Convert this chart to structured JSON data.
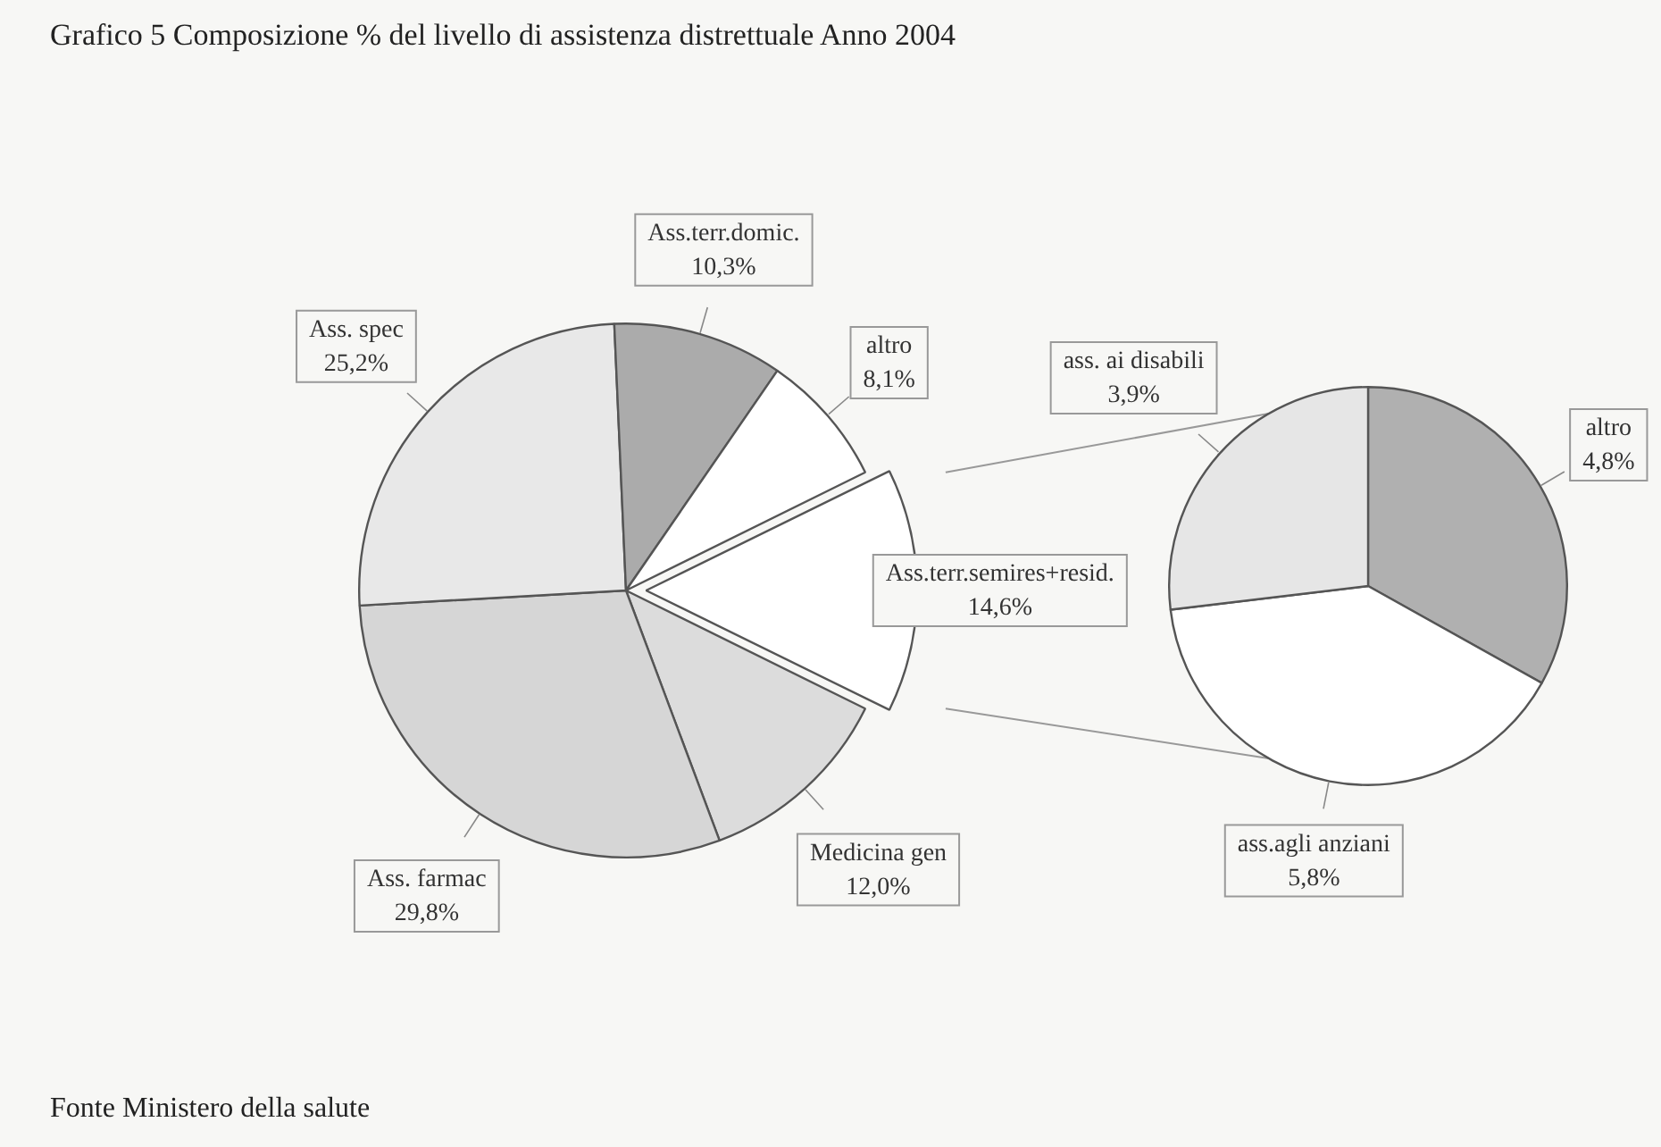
{
  "chart_data": [
    {
      "type": "pie",
      "title": "Grafico 5 Composizione % del livello di assistenza distrettuale  Anno 2004",
      "categories": [
        "Ass.terr.semires+resid.",
        "Medicina gen",
        "Ass. farmac",
        "Ass. spec",
        "Ass.terr.domic.",
        "altro"
      ],
      "values": [
        14.6,
        12.0,
        29.8,
        25.2,
        10.3,
        8.1
      ],
      "colors": [
        "#ffffff",
        "#dcdcdc",
        "#d6d6d6",
        "#e8e8e8",
        "#ababab",
        "#ffffff"
      ],
      "value_labels": [
        "14,6%",
        "12,0%",
        "29,8%",
        "25,2%",
        "10,3%",
        "8,1%"
      ],
      "annotations": [
        "Fonte  Ministero della salute"
      ]
    },
    {
      "type": "pie",
      "categories": [
        "altro",
        "ass.agli anziani",
        "ass. ai disabili"
      ],
      "values": [
        4.8,
        5.8,
        3.9
      ],
      "colors": [
        "#b0b0b0",
        "#ffffff",
        "#e6e6e6"
      ],
      "value_labels": [
        "4,8%",
        "5,8%",
        "3,9%"
      ]
    }
  ]
}
